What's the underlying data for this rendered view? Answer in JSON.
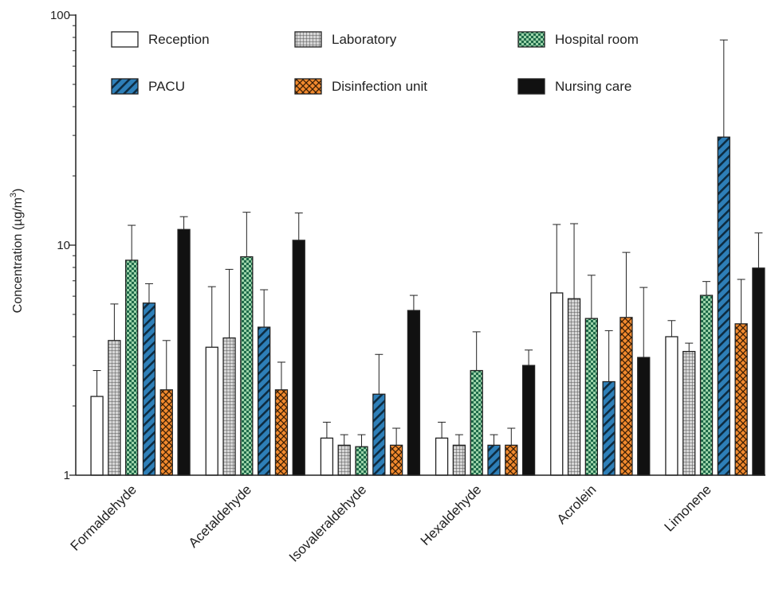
{
  "chart_data": {
    "type": "bar",
    "y_scale": "log",
    "ylim": [
      1,
      100
    ],
    "yticks": [
      1,
      10,
      100
    ],
    "ylabel": "Concentration (µg/m",
    "ylabel_sup": "3",
    "ylabel_close": ")",
    "categories": [
      "Formaldehyde",
      "Acetaldehyde",
      "Isovaleraldehyde",
      "Hexaldehyde",
      "Acrolein",
      "Limonene"
    ],
    "legend_position": "top",
    "series": [
      {
        "name": "Reception",
        "pattern": "white",
        "color": "#ffffff",
        "values": [
          2.2,
          3.6,
          1.45,
          1.45,
          6.2,
          4.0
        ],
        "errors": [
          2.85,
          6.6,
          1.7,
          1.7,
          12.3,
          4.7
        ]
      },
      {
        "name": "Laboratory",
        "pattern": "grid",
        "color": "#bdbdbd",
        "values": [
          3.85,
          3.95,
          1.35,
          1.35,
          5.85,
          3.45
        ],
        "errors": [
          5.55,
          7.85,
          1.5,
          1.5,
          12.4,
          3.75
        ]
      },
      {
        "name": "Hospital room",
        "pattern": "checker",
        "color": "#1f6a4a",
        "values": [
          8.6,
          8.9,
          1.33,
          2.85,
          4.8,
          6.05
        ],
        "errors": [
          12.2,
          13.9,
          1.5,
          4.2,
          7.4,
          6.95
        ]
      },
      {
        "name": "PACU",
        "pattern": "diagonal",
        "color": "#2e7fb8",
        "values": [
          5.6,
          4.4,
          2.25,
          1.35,
          2.55,
          29.5
        ],
        "errors": [
          6.8,
          6.4,
          3.35,
          1.5,
          4.25,
          78.0
        ]
      },
      {
        "name": "Disinfection unit",
        "pattern": "crosshatch",
        "color": "#f28a2e",
        "values": [
          2.35,
          2.35,
          1.35,
          1.35,
          4.85,
          4.55
        ],
        "errors": [
          3.85,
          3.1,
          1.6,
          1.6,
          9.3,
          7.1
        ]
      },
      {
        "name": "Nursing care",
        "pattern": "black",
        "color": "#111111",
        "values": [
          11.7,
          10.5,
          5.2,
          3.0,
          3.25,
          7.95
        ],
        "errors": [
          13.3,
          13.8,
          6.05,
          3.5,
          6.55,
          11.3
        ]
      }
    ]
  }
}
